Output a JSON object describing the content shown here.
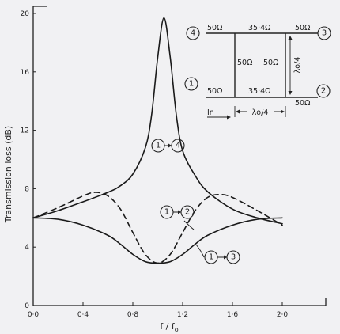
{
  "chart_data": {
    "type": "line",
    "xlabel": "f / f",
    "xlabel_sub": "o",
    "ylabel": "Transmission  loss  (dB)",
    "xlim": [
      0,
      2.2
    ],
    "ylim": [
      0,
      20.5
    ],
    "x_ticks": [
      0,
      0.4,
      0.8,
      1.2,
      1.6,
      2.0
    ],
    "x_tick_labels": [
      "0·0",
      "0·4",
      "0·8",
      "1·2",
      "1·6",
      "2·0"
    ],
    "y_ticks": [
      0,
      4,
      8,
      12,
      16,
      20
    ],
    "y_tick_labels": [
      "0",
      "4",
      "8",
      "12",
      "16",
      "20"
    ],
    "grid": false,
    "series": [
      {
        "from": "1",
        "to": "4",
        "style": "solid",
        "x": [
          0,
          0.2,
          0.4,
          0.6,
          0.7,
          0.8,
          0.9,
          0.95,
          1.0,
          1.05,
          1.1,
          1.15,
          1.2,
          1.3,
          1.4,
          1.6,
          1.8,
          2.0
        ],
        "y": [
          6.0,
          6.5,
          7.1,
          7.75,
          8.2,
          9.0,
          10.8,
          13.0,
          17.0,
          19.7,
          17.0,
          13.0,
          10.6,
          8.9,
          7.8,
          6.6,
          6.0,
          5.6
        ]
      },
      {
        "from": "1",
        "to": "2",
        "style": "dashed",
        "x": [
          0,
          0.2,
          0.4,
          0.5,
          0.6,
          0.7,
          0.8,
          0.9,
          1.0,
          1.1,
          1.2,
          1.3,
          1.4,
          1.5,
          1.6,
          1.8,
          2.0
        ],
        "y": [
          6.0,
          6.7,
          7.5,
          7.75,
          7.5,
          6.6,
          5.0,
          3.5,
          2.9,
          3.5,
          5.0,
          6.5,
          7.4,
          7.6,
          7.4,
          6.5,
          5.5
        ]
      },
      {
        "from": "1",
        "to": "3",
        "style": "solid",
        "x": [
          0,
          0.2,
          0.4,
          0.6,
          0.7,
          0.8,
          0.9,
          1.0,
          1.1,
          1.2,
          1.3,
          1.4,
          1.6,
          1.8,
          2.0
        ],
        "y": [
          6.0,
          5.9,
          5.5,
          4.8,
          4.2,
          3.5,
          3.0,
          2.9,
          3.0,
          3.5,
          4.2,
          4.8,
          5.5,
          5.9,
          6.0
        ]
      }
    ],
    "inset": {
      "ports": [
        "1",
        "2",
        "3",
        "4"
      ],
      "z_port": "50Ω",
      "z_series": "35·4Ω",
      "z_shunt": "50Ω",
      "length_vertical": "λo/4",
      "length_horizontal": "λo/4",
      "input_label": "In"
    }
  }
}
